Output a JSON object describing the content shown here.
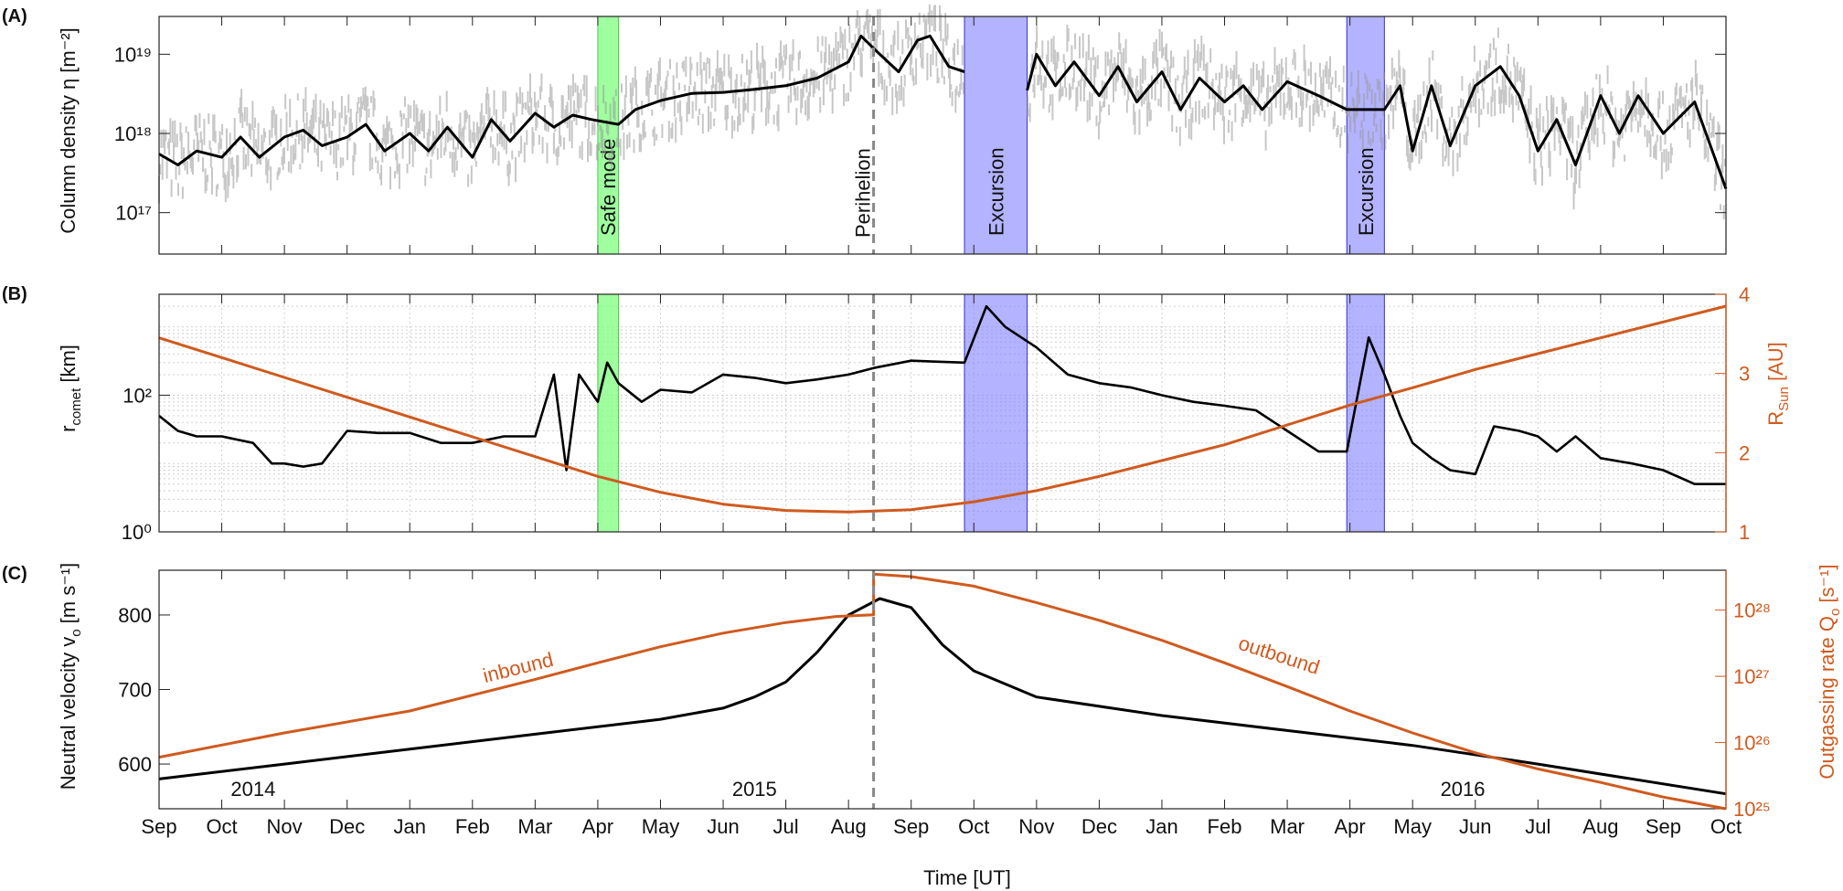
{
  "months": [
    "Sep",
    "Oct",
    "Nov",
    "Dec",
    "Jan",
    "Feb",
    "Mar",
    "Apr",
    "May",
    "Jun",
    "Jul",
    "Aug",
    "Sep",
    "Oct",
    "Nov",
    "Dec",
    "Jan",
    "Feb",
    "Mar",
    "Apr",
    "May",
    "Jun",
    "Jul",
    "Aug",
    "Sep",
    "Oct"
  ],
  "x_axis_label": "Time [UT]",
  "years": [
    {
      "label": "2014",
      "month_index": 1.5
    },
    {
      "label": "2015",
      "month_index": 9.5
    },
    {
      "label": "2016",
      "month_index": 20.8
    }
  ],
  "colors": {
    "inbound_outbound": "#d05a1e",
    "safe_mode": "#7fff7f",
    "excursion": "#8080ff",
    "perihelion": "#888888",
    "scatter": "#999999"
  },
  "annotations": {
    "safe_mode": {
      "label": "Safe mode",
      "start_month": 7.0,
      "end_month": 7.33
    },
    "excursions": [
      {
        "label": "Excursion",
        "start_month": 12.85,
        "end_month": 13.85
      },
      {
        "label": "Excursion",
        "start_month": 18.95,
        "end_month": 19.55
      }
    ],
    "perihelion": {
      "label": "Perihelion",
      "month": 11.4
    }
  },
  "panels": {
    "a": {
      "tag": "(A)",
      "ylabel": "Column density η [m⁻²]"
    },
    "b": {
      "tag": "(B)",
      "ylabel_left": "r",
      "ylabel_left_sub": "comet",
      "ylabel_left_unit": " [km]",
      "ylabel_right": "R",
      "ylabel_right_sub": "Sun",
      "ylabel_right_unit": " [AU]"
    },
    "c": {
      "tag": "(C)",
      "ylabel_left": "Neutral velocity v",
      "ylabel_left_sub": "o",
      "ylabel_left_unit": " [m s⁻¹]",
      "ylabel_right": "Outgassing rate Q",
      "ylabel_right_sub": "o",
      "ylabel_right_unit": " [s⁻¹]",
      "inbound_label": "inbound",
      "outbound_label": "outbound"
    }
  },
  "chart_data": [
    {
      "type": "scatter",
      "panel": "A",
      "title": "",
      "ylabel": "Column density η [m⁻²]",
      "yscale": "log",
      "ylim": [
        3e+16,
        3e+19
      ],
      "yticks": [
        {
          "value": 1e+17,
          "label": "10¹⁷"
        },
        {
          "value": 1e+18,
          "label": "10¹⁸"
        },
        {
          "value": 1e+19,
          "label": "10¹⁹"
        }
      ],
      "xunit": "months since Sep 2014",
      "series": [
        {
          "points": [
            [
              0,
              5.5e+17
            ],
            [
              0.3,
              4e+17
            ],
            [
              0.6,
              6e+17
            ],
            [
              1,
              5e+17
            ],
            [
              1.3,
              9e+17
            ],
            [
              1.6,
              5e+17
            ],
            [
              2,
              9e+17
            ],
            [
              2.3,
              1.1e+18
            ],
            [
              2.6,
              7e+17
            ],
            [
              3,
              9e+17
            ],
            [
              3.3,
              1.3e+18
            ],
            [
              3.6,
              6e+17
            ],
            [
              4,
              1e+18
            ],
            [
              4.3,
              6e+17
            ],
            [
              4.6,
              1.2e+18
            ],
            [
              5,
              5e+17
            ],
            [
              5.3,
              1.5e+18
            ],
            [
              5.6,
              8e+17
            ],
            [
              6,
              1.8e+18
            ],
            [
              6.3,
              1.2e+18
            ],
            [
              6.6,
              1.7e+18
            ],
            [
              6.9,
              1.5e+18
            ],
            [
              7.33,
              1.3e+18
            ],
            [
              7.6,
              2e+18
            ],
            [
              8,
              2.6e+18
            ],
            [
              8.5,
              3.2e+18
            ],
            [
              9,
              3.3e+18
            ],
            [
              9.5,
              3.6e+18
            ],
            [
              10,
              4e+18
            ],
            [
              10.5,
              5e+18
            ],
            [
              11,
              8e+18
            ],
            [
              11.2,
              1.7e+19
            ],
            [
              11.5,
              1e+19
            ],
            [
              11.8,
              6e+18
            ],
            [
              12.1,
              1.5e+19
            ],
            [
              12.3,
              1.7e+19
            ],
            [
              12.6,
              7e+18
            ],
            [
              12.85,
              6e+18
            ],
            [
              13.85,
              3.5e+18
            ],
            [
              14,
              1e+19
            ],
            [
              14.3,
              4e+18
            ],
            [
              14.6,
              8e+18
            ],
            [
              15,
              3e+18
            ],
            [
              15.3,
              7e+18
            ],
            [
              15.6,
              2.5e+18
            ],
            [
              16,
              6e+18
            ],
            [
              16.3,
              2e+18
            ],
            [
              16.6,
              5e+18
            ],
            [
              17,
              2.5e+18
            ],
            [
              17.3,
              4e+18
            ],
            [
              17.6,
              2e+18
            ],
            [
              18,
              4.5e+18
            ],
            [
              18.5,
              3e+18
            ],
            [
              18.95,
              2e+18
            ],
            [
              19.55,
              2e+18
            ],
            [
              19.8,
              4e+18
            ],
            [
              20,
              6e+17
            ],
            [
              20.3,
              4e+18
            ],
            [
              20.6,
              7e+17
            ],
            [
              21,
              4e+18
            ],
            [
              21.4,
              7e+18
            ],
            [
              21.7,
              3e+18
            ],
            [
              22,
              6e+17
            ],
            [
              22.3,
              1.5e+18
            ],
            [
              22.6,
              4e+17
            ],
            [
              23,
              3e+18
            ],
            [
              23.3,
              1e+18
            ],
            [
              23.6,
              3e+18
            ],
            [
              24,
              1e+18
            ],
            [
              24.5,
              2.5e+18
            ],
            [
              25,
              2e+17
            ]
          ]
        }
      ]
    },
    {
      "type": "line",
      "panel": "B",
      "title": "",
      "ylabel": "r_comet [km]",
      "ylabel_right": "R_Sun [AU]",
      "yscale": "log",
      "ylim": [
        1,
        3000
      ],
      "yticks": [
        {
          "value": 1,
          "label": "10⁰"
        },
        {
          "value": 100,
          "label": "10²"
        }
      ],
      "ylim_right": [
        1,
        4
      ],
      "yticks_right": [
        1,
        2,
        3,
        4
      ],
      "xunit": "months since Sep 2014",
      "series": [
        {
          "axis": "left",
          "values": [
            [
              0,
              50
            ],
            [
              0.3,
              30
            ],
            [
              0.6,
              25
            ],
            [
              1,
              25
            ],
            [
              1.5,
              20
            ],
            [
              1.8,
              10
            ],
            [
              2,
              10
            ],
            [
              2.3,
              9
            ],
            [
              2.6,
              10
            ],
            [
              3,
              30
            ],
            [
              3.5,
              28
            ],
            [
              4,
              28
            ],
            [
              4.5,
              20
            ],
            [
              5,
              20
            ],
            [
              5.5,
              25
            ],
            [
              6,
              25
            ],
            [
              6.3,
              200
            ],
            [
              6.5,
              8
            ],
            [
              6.7,
              200
            ],
            [
              7,
              80
            ],
            [
              7.15,
              300
            ],
            [
              7.33,
              150
            ],
            [
              7.7,
              80
            ],
            [
              8,
              120
            ],
            [
              8.5,
              110
            ],
            [
              9,
              200
            ],
            [
              9.5,
              180
            ],
            [
              10,
              150
            ],
            [
              10.5,
              170
            ],
            [
              11,
              200
            ],
            [
              11.4,
              250
            ],
            [
              12,
              320
            ],
            [
              12.85,
              300
            ],
            [
              13.2,
              2000
            ],
            [
              13.5,
              1000
            ],
            [
              14,
              500
            ],
            [
              14.5,
              200
            ],
            [
              15,
              150
            ],
            [
              15.5,
              130
            ],
            [
              16,
              100
            ],
            [
              16.5,
              80
            ],
            [
              17,
              70
            ],
            [
              17.5,
              60
            ],
            [
              18,
              30
            ],
            [
              18.5,
              15
            ],
            [
              18.95,
              15
            ],
            [
              19.3,
              700
            ],
            [
              19.55,
              200
            ],
            [
              19.8,
              50
            ],
            [
              20,
              20
            ],
            [
              20.3,
              12
            ],
            [
              20.6,
              8
            ],
            [
              21,
              7
            ],
            [
              21.3,
              35
            ],
            [
              21.7,
              30
            ],
            [
              22,
              25
            ],
            [
              22.3,
              15
            ],
            [
              22.6,
              25
            ],
            [
              23,
              12
            ],
            [
              23.5,
              10
            ],
            [
              24,
              8
            ],
            [
              24.5,
              5
            ],
            [
              25,
              5
            ]
          ]
        },
        {
          "axis": "right",
          "values": [
            [
              0,
              3.45
            ],
            [
              1,
              3.2
            ],
            [
              2,
              2.95
            ],
            [
              3,
              2.7
            ],
            [
              4,
              2.45
            ],
            [
              5,
              2.2
            ],
            [
              6,
              1.95
            ],
            [
              7,
              1.7
            ],
            [
              8,
              1.5
            ],
            [
              9,
              1.35
            ],
            [
              10,
              1.27
            ],
            [
              11,
              1.25
            ],
            [
              12,
              1.28
            ],
            [
              13,
              1.38
            ],
            [
              14,
              1.52
            ],
            [
              15,
              1.7
            ],
            [
              16,
              1.9
            ],
            [
              17,
              2.1
            ],
            [
              18,
              2.35
            ],
            [
              19,
              2.6
            ],
            [
              20,
              2.82
            ],
            [
              21,
              3.05
            ],
            [
              22,
              3.25
            ],
            [
              23,
              3.45
            ],
            [
              24,
              3.65
            ],
            [
              25,
              3.85
            ]
          ]
        }
      ]
    },
    {
      "type": "line",
      "panel": "C",
      "title": "",
      "ylabel": "Neutral velocity v_o [m s⁻¹]",
      "ylabel_right": "Outgassing rate Q_o [s⁻¹]",
      "ylim": [
        540,
        860
      ],
      "yticks": [
        600,
        700,
        800
      ],
      "yscale_right": "log",
      "ylim_right": [
        1e+25,
        4e+28
      ],
      "yticks_right": [
        {
          "value": 1e+25,
          "label": "10²⁵"
        },
        {
          "value": 1e+26,
          "label": "10²⁶"
        },
        {
          "value": 1e+27,
          "label": "10²⁷"
        },
        {
          "value": 1e+28,
          "label": "10²⁸"
        }
      ],
      "xunit": "months since Sep 2014",
      "series": [
        {
          "axis": "left",
          "values": [
            [
              0,
              580
            ],
            [
              2,
              600
            ],
            [
              4,
              620
            ],
            [
              6,
              640
            ],
            [
              8,
              660
            ],
            [
              9,
              675
            ],
            [
              9.5,
              690
            ],
            [
              10,
              710
            ],
            [
              10.5,
              750
            ],
            [
              11,
              800
            ],
            [
              11.5,
              822
            ],
            [
              12,
              810
            ],
            [
              12.5,
              760
            ],
            [
              13,
              725
            ],
            [
              14,
              690
            ],
            [
              16,
              665
            ],
            [
              18,
              645
            ],
            [
              20,
              625
            ],
            [
              22,
              600
            ],
            [
              25,
              560
            ]
          ]
        },
        {
          "axis": "right",
          "name": "inbound",
          "values": [
            [
              0,
              6e+25
            ],
            [
              2,
              1.4e+26
            ],
            [
              4,
              3e+26
            ],
            [
              6,
              9e+26
            ],
            [
              7,
              1.6e+27
            ],
            [
              8,
              2.8e+27
            ],
            [
              9,
              4.5e+27
            ],
            [
              10,
              6.5e+27
            ],
            [
              10.8,
              8e+27
            ],
            [
              11.4,
              8.5e+27
            ]
          ]
        },
        {
          "axis": "right",
          "name": "outbound",
          "values": [
            [
              11.4,
              3.5e+28
            ],
            [
              12,
              3.2e+28
            ],
            [
              13,
              2.3e+28
            ],
            [
              14,
              1.3e+28
            ],
            [
              15,
              7e+27
            ],
            [
              16,
              3.5e+27
            ],
            [
              17,
              1.6e+27
            ],
            [
              18,
              7e+26
            ],
            [
              19,
              3e+26
            ],
            [
              20,
              1.4e+26
            ],
            [
              21,
              7e+25
            ],
            [
              22,
              4e+25
            ],
            [
              23,
              2.5e+25
            ],
            [
              24,
              1.5e+25
            ],
            [
              25,
              1e+25
            ]
          ]
        }
      ]
    }
  ]
}
